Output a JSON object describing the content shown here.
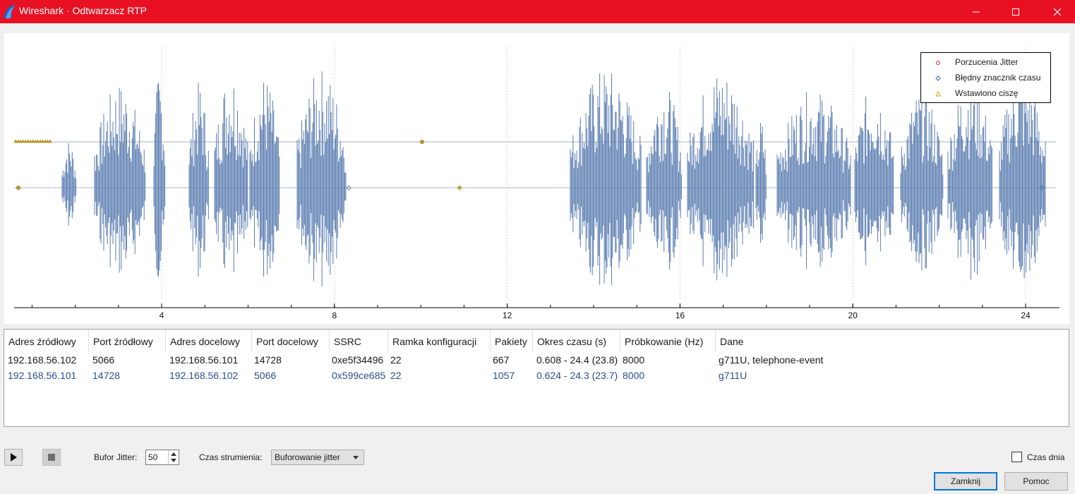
{
  "window": {
    "title": "Wireshark · Odtwarzacz RTP",
    "minimize": "—",
    "maximize": "☐",
    "close": "✕"
  },
  "plot": {
    "x_ticks": [
      "4",
      "8",
      "12",
      "16",
      "20",
      "24"
    ],
    "legend": {
      "items": [
        {
          "label": "Porzucenia Jitter",
          "marker": "circle",
          "color": "#d62728"
        },
        {
          "label": "Błędny znacznik czasu",
          "marker": "diamond",
          "color": "#2a6fb0"
        },
        {
          "label": "Wstawiono ciszę",
          "marker": "triangle",
          "color": "#d4a017"
        }
      ]
    },
    "waveform_color": "#5b7db1",
    "baseline_color": "#a9b6c8"
  },
  "table": {
    "headers": [
      "Adres źródłowy",
      "Port źródłowy",
      "Adres docelowy",
      "Port docelowy",
      "SSRC",
      "Ramka konfiguracji",
      "Pakiety",
      "Okres czasu (s)",
      "Próbkowanie (Hz)",
      "Dane"
    ],
    "rows": [
      [
        "192.168.56.102",
        "5066",
        "192.168.56.101",
        "14728",
        "0xe5f34496",
        "22",
        "667",
        "0.608 - 24.4 (23.8)",
        "8000",
        "g711U, telephone-event"
      ],
      [
        "192.168.56.101",
        "14728",
        "192.168.56.102",
        "5066",
        "0x599ce685",
        "22",
        "1057",
        "0.624 - 24.3 (23.7)",
        "8000",
        "g711U"
      ]
    ]
  },
  "controls": {
    "play_icon": "play-icon",
    "stop_icon": "stop-icon",
    "jitter_label": "Bufor Jitter:",
    "jitter_value": "50",
    "timing_label": "Czas strumienia:",
    "timing_value": "Buforowanie jitter",
    "time_of_day_label": "Czas dnia",
    "close_button": "Zamknij",
    "help_button": "Pomoc"
  }
}
